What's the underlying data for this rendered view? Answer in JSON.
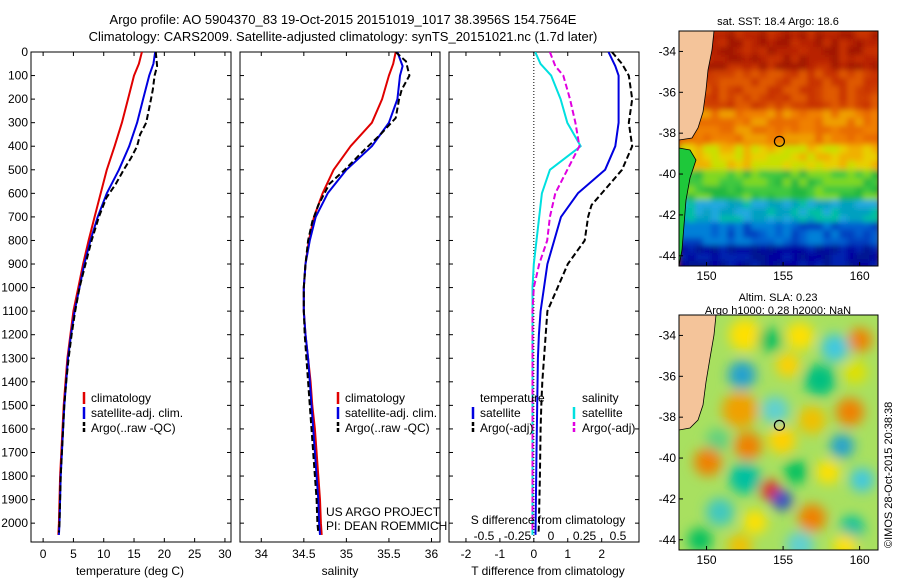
{
  "header": {
    "title_line1": "Argo profile: AO 5904370_83 19-Oct-2015 20151019_1017 38.3956S 154.7564E",
    "title_line2": "Climatology: CARS2009. Satellite-adjusted climatology: synTS_20151021.nc (1.7d later)"
  },
  "colors": {
    "climatology": "#e00000",
    "satellite": "#0000e0",
    "argo": "#000000",
    "salinity_sat": "#00e0e0",
    "salinity_argo": "#e000e0",
    "land": "#f4c49a"
  },
  "chart_data": [
    {
      "type": "line",
      "id": "temperature",
      "xlabel": "temperature (deg C)",
      "xlim": [
        -2,
        31
      ],
      "ylim": [
        2080,
        0
      ],
      "xticks": [
        "0",
        "5",
        "10",
        "15",
        "20",
        "25",
        "30"
      ],
      "yticks": [
        "0",
        "100",
        "200",
        "300",
        "400",
        "500",
        "600",
        "700",
        "800",
        "900",
        "1000",
        "1100",
        "1200",
        "1300",
        "1400",
        "1500",
        "1600",
        "1700",
        "1800",
        "1900",
        "2000"
      ],
      "legend": [
        "climatology",
        "satellite-adj. clim.",
        "Argo(..raw -QC)"
      ],
      "series": [
        {
          "name": "climatology",
          "points": [
            [
              16.3,
              0
            ],
            [
              15.8,
              50
            ],
            [
              15.0,
              100
            ],
            [
              14.0,
              200
            ],
            [
              13.0,
              300
            ],
            [
              11.8,
              400
            ],
            [
              10.5,
              500
            ],
            [
              9.5,
              600
            ],
            [
              8.5,
              700
            ],
            [
              7.5,
              800
            ],
            [
              6.6,
              900
            ],
            [
              5.8,
              1000
            ],
            [
              5.0,
              1100
            ],
            [
              4.5,
              1200
            ],
            [
              4.0,
              1300
            ],
            [
              3.7,
              1400
            ],
            [
              3.4,
              1500
            ],
            [
              3.2,
              1600
            ],
            [
              3.0,
              1700
            ],
            [
              2.8,
              1800
            ],
            [
              2.7,
              1900
            ],
            [
              2.6,
              2000
            ],
            [
              2.5,
              2050
            ]
          ]
        },
        {
          "name": "satellite-adj. clim.",
          "points": [
            [
              18.5,
              0
            ],
            [
              18.2,
              50
            ],
            [
              17.5,
              100
            ],
            [
              16.5,
              200
            ],
            [
              15.5,
              300
            ],
            [
              14.2,
              400
            ],
            [
              12.5,
              500
            ],
            [
              10.5,
              600
            ],
            [
              9.0,
              700
            ],
            [
              7.8,
              800
            ],
            [
              6.8,
              900
            ],
            [
              6.0,
              1000
            ],
            [
              5.2,
              1100
            ],
            [
              4.6,
              1200
            ],
            [
              4.1,
              1300
            ],
            [
              3.8,
              1400
            ],
            [
              3.5,
              1500
            ],
            [
              3.3,
              1600
            ],
            [
              3.1,
              1700
            ],
            [
              2.9,
              1800
            ],
            [
              2.8,
              1900
            ],
            [
              2.7,
              2000
            ],
            [
              2.6,
              2050
            ]
          ]
        },
        {
          "name": "Argo(..raw -QC)",
          "points": [
            [
              18.6,
              0
            ],
            [
              18.8,
              60
            ],
            [
              18.4,
              100
            ],
            [
              18.1,
              160
            ],
            [
              17.8,
              200
            ],
            [
              17.4,
              250
            ],
            [
              17.0,
              300
            ],
            [
              16.0,
              350
            ],
            [
              15.5,
              400
            ],
            [
              14.5,
              450
            ],
            [
              13.3,
              500
            ],
            [
              12.0,
              560
            ],
            [
              10.4,
              620
            ],
            [
              9.2,
              700
            ],
            [
              8.0,
              800
            ],
            [
              7.0,
              900
            ],
            [
              6.0,
              1000
            ],
            [
              5.3,
              1100
            ],
            [
              4.7,
              1200
            ],
            [
              4.2,
              1300
            ],
            [
              3.8,
              1400
            ],
            [
              3.5,
              1500
            ],
            [
              3.3,
              1600
            ],
            [
              3.1,
              1700
            ],
            [
              2.9,
              1800
            ],
            [
              2.8,
              1900
            ],
            [
              2.7,
              2000
            ],
            [
              2.6,
              2040
            ]
          ]
        }
      ]
    },
    {
      "type": "line",
      "id": "salinity",
      "xlabel": "salinity",
      "xlim": [
        33.75,
        36.1
      ],
      "ylim": [
        2080,
        0
      ],
      "xticks": [
        "34",
        "34.5",
        "35",
        "35.5",
        "36"
      ],
      "legend": [
        "climatology",
        "satellite-adj. clim.",
        "Argo(..raw -QC)"
      ],
      "annotation": [
        "US ARGO PROJECT",
        "PI: DEAN ROEMMICH"
      ],
      "series": [
        {
          "name": "climatology",
          "points": [
            [
              35.58,
              0
            ],
            [
              35.55,
              50
            ],
            [
              35.5,
              100
            ],
            [
              35.42,
              200
            ],
            [
              35.3,
              300
            ],
            [
              35.05,
              400
            ],
            [
              34.85,
              500
            ],
            [
              34.72,
              600
            ],
            [
              34.62,
              700
            ],
            [
              34.56,
              800
            ],
            [
              34.52,
              900
            ],
            [
              34.5,
              1000
            ],
            [
              34.5,
              1100
            ],
            [
              34.52,
              1200
            ],
            [
              34.55,
              1300
            ],
            [
              34.58,
              1400
            ],
            [
              34.6,
              1500
            ],
            [
              34.63,
              1600
            ],
            [
              34.65,
              1700
            ],
            [
              34.67,
              1800
            ],
            [
              34.69,
              1900
            ],
            [
              34.7,
              2000
            ],
            [
              34.71,
              2050
            ]
          ]
        },
        {
          "name": "satellite-adj. clim.",
          "points": [
            [
              35.6,
              0
            ],
            [
              35.66,
              60
            ],
            [
              35.63,
              100
            ],
            [
              35.6,
              200
            ],
            [
              35.5,
              300
            ],
            [
              35.3,
              400
            ],
            [
              35.0,
              500
            ],
            [
              34.78,
              600
            ],
            [
              34.64,
              700
            ],
            [
              34.57,
              800
            ],
            [
              34.52,
              900
            ],
            [
              34.5,
              1000
            ],
            [
              34.5,
              1100
            ],
            [
              34.52,
              1200
            ],
            [
              34.55,
              1300
            ],
            [
              34.57,
              1400
            ],
            [
              34.59,
              1500
            ],
            [
              34.61,
              1600
            ],
            [
              34.63,
              1700
            ],
            [
              34.65,
              1800
            ],
            [
              34.67,
              1900
            ],
            [
              34.68,
              2000
            ],
            [
              34.69,
              2050
            ]
          ]
        },
        {
          "name": "Argo(..raw -QC)",
          "points": [
            [
              35.58,
              0
            ],
            [
              35.7,
              40
            ],
            [
              35.74,
              100
            ],
            [
              35.65,
              160
            ],
            [
              35.62,
              200
            ],
            [
              35.58,
              280
            ],
            [
              35.4,
              350
            ],
            [
              35.2,
              420
            ],
            [
              34.98,
              500
            ],
            [
              34.8,
              560
            ],
            [
              34.67,
              650
            ],
            [
              34.6,
              720
            ],
            [
              34.55,
              800
            ],
            [
              34.52,
              900
            ],
            [
              34.5,
              1000
            ],
            [
              34.5,
              1100
            ],
            [
              34.51,
              1200
            ],
            [
              34.53,
              1300
            ],
            [
              34.55,
              1400
            ],
            [
              34.57,
              1500
            ],
            [
              34.59,
              1600
            ],
            [
              34.61,
              1700
            ],
            [
              34.63,
              1800
            ],
            [
              34.65,
              1900
            ],
            [
              34.66,
              2000
            ],
            [
              34.67,
              2040
            ]
          ]
        }
      ]
    },
    {
      "type": "line",
      "id": "difference",
      "xlabel": "T difference from climatology",
      "xlabel2": "S difference from climatology",
      "xlim": [
        -2.5,
        3.1
      ],
      "ylim": [
        2080,
        0
      ],
      "xticks": [
        "-2",
        "-1",
        "0",
        "1",
        "2"
      ],
      "xticks2": [
        "-0.5",
        "-0.25",
        "0",
        "0.25",
        "0.5"
      ],
      "legend_titles": [
        "temperature",
        "salinity"
      ],
      "legend": [
        "satellite",
        "Argo(-adj)",
        "satellite",
        "Argo(-adj)"
      ],
      "series": [
        {
          "name": "temperature satellite",
          "points": [
            [
              2.2,
              0
            ],
            [
              2.4,
              60
            ],
            [
              2.5,
              100
            ],
            [
              2.5,
              200
            ],
            [
              2.5,
              300
            ],
            [
              2.4,
              400
            ],
            [
              2.1,
              500
            ],
            [
              1.3,
              600
            ],
            [
              0.8,
              700
            ],
            [
              0.6,
              800
            ],
            [
              0.4,
              900
            ],
            [
              0.3,
              1000
            ],
            [
              0.2,
              1100
            ],
            [
              0.15,
              1200
            ],
            [
              0.12,
              1300
            ],
            [
              0.1,
              1500
            ],
            [
              0.08,
              1700
            ],
            [
              0.06,
              1900
            ],
            [
              0.05,
              2050
            ]
          ]
        },
        {
          "name": "temperature Argo(-adj)",
          "points": [
            [
              2.3,
              0
            ],
            [
              2.6,
              50
            ],
            [
              2.8,
              100
            ],
            [
              2.9,
              200
            ],
            [
              2.8,
              300
            ],
            [
              2.9,
              400
            ],
            [
              2.6,
              500
            ],
            [
              2.3,
              550
            ],
            [
              1.7,
              650
            ],
            [
              1.6,
              700
            ],
            [
              1.5,
              800
            ],
            [
              1.0,
              900
            ],
            [
              0.7,
              1000
            ],
            [
              0.4,
              1100
            ],
            [
              0.35,
              1200
            ],
            [
              0.3,
              1300
            ],
            [
              0.25,
              1400
            ],
            [
              0.22,
              1500
            ],
            [
              0.2,
              1600
            ],
            [
              0.18,
              1800
            ],
            [
              0.15,
              2000
            ],
            [
              0.14,
              2040
            ]
          ]
        },
        {
          "name": "salinity satellite",
          "points": [
            [
              0.01,
              0
            ],
            [
              0.05,
              50
            ],
            [
              0.13,
              100
            ],
            [
              0.2,
              200
            ],
            [
              0.25,
              300
            ],
            [
              0.35,
              400
            ],
            [
              0.12,
              500
            ],
            [
              0.06,
              600
            ],
            [
              0.04,
              700
            ],
            [
              0.02,
              800
            ],
            [
              0.0,
              900
            ],
            [
              -0.01,
              1000
            ],
            [
              -0.01,
              1100
            ],
            [
              -0.01,
              1300
            ],
            [
              -0.01,
              1500
            ],
            [
              -0.01,
              1700
            ],
            [
              -0.01,
              1900
            ],
            [
              -0.01,
              2050
            ]
          ]
        },
        {
          "name": "salinity Argo(-adj)",
          "points": [
            [
              0.12,
              0
            ],
            [
              0.16,
              60
            ],
            [
              0.22,
              100
            ],
            [
              0.27,
              200
            ],
            [
              0.31,
              300
            ],
            [
              0.34,
              400
            ],
            [
              0.25,
              500
            ],
            [
              0.16,
              600
            ],
            [
              0.12,
              700
            ],
            [
              0.1,
              800
            ],
            [
              0.04,
              900
            ],
            [
              0.0,
              1000
            ],
            [
              -0.01,
              1100
            ],
            [
              -0.01,
              1300
            ],
            [
              -0.01,
              1500
            ],
            [
              -0.01,
              1700
            ],
            [
              -0.01,
              1900
            ],
            [
              -0.01,
              2040
            ]
          ]
        }
      ]
    },
    {
      "type": "heatmap",
      "id": "sst_map",
      "title": "sat. SST: 18.4 Argo: 18.6",
      "xticks": [
        "150",
        "155",
        "160"
      ],
      "yticks": [
        "-34",
        "-36",
        "-38",
        "-40",
        "-42",
        "-44"
      ],
      "float_position": [
        154.76,
        -38.4
      ]
    },
    {
      "type": "heatmap",
      "id": "sla_map",
      "title_line1": "Altim. SLA: 0.23",
      "title_line2": "Argo h1000: 0.28 h2000: NaN",
      "xticks": [
        "150",
        "155",
        "160"
      ],
      "yticks": [
        "-34",
        "-36",
        "-38",
        "-40",
        "-42",
        "-44"
      ],
      "float_position": [
        154.76,
        -38.4
      ]
    }
  ],
  "footer": {
    "watermark": "©IMOS 28-Oct-2015 20:38:38"
  }
}
